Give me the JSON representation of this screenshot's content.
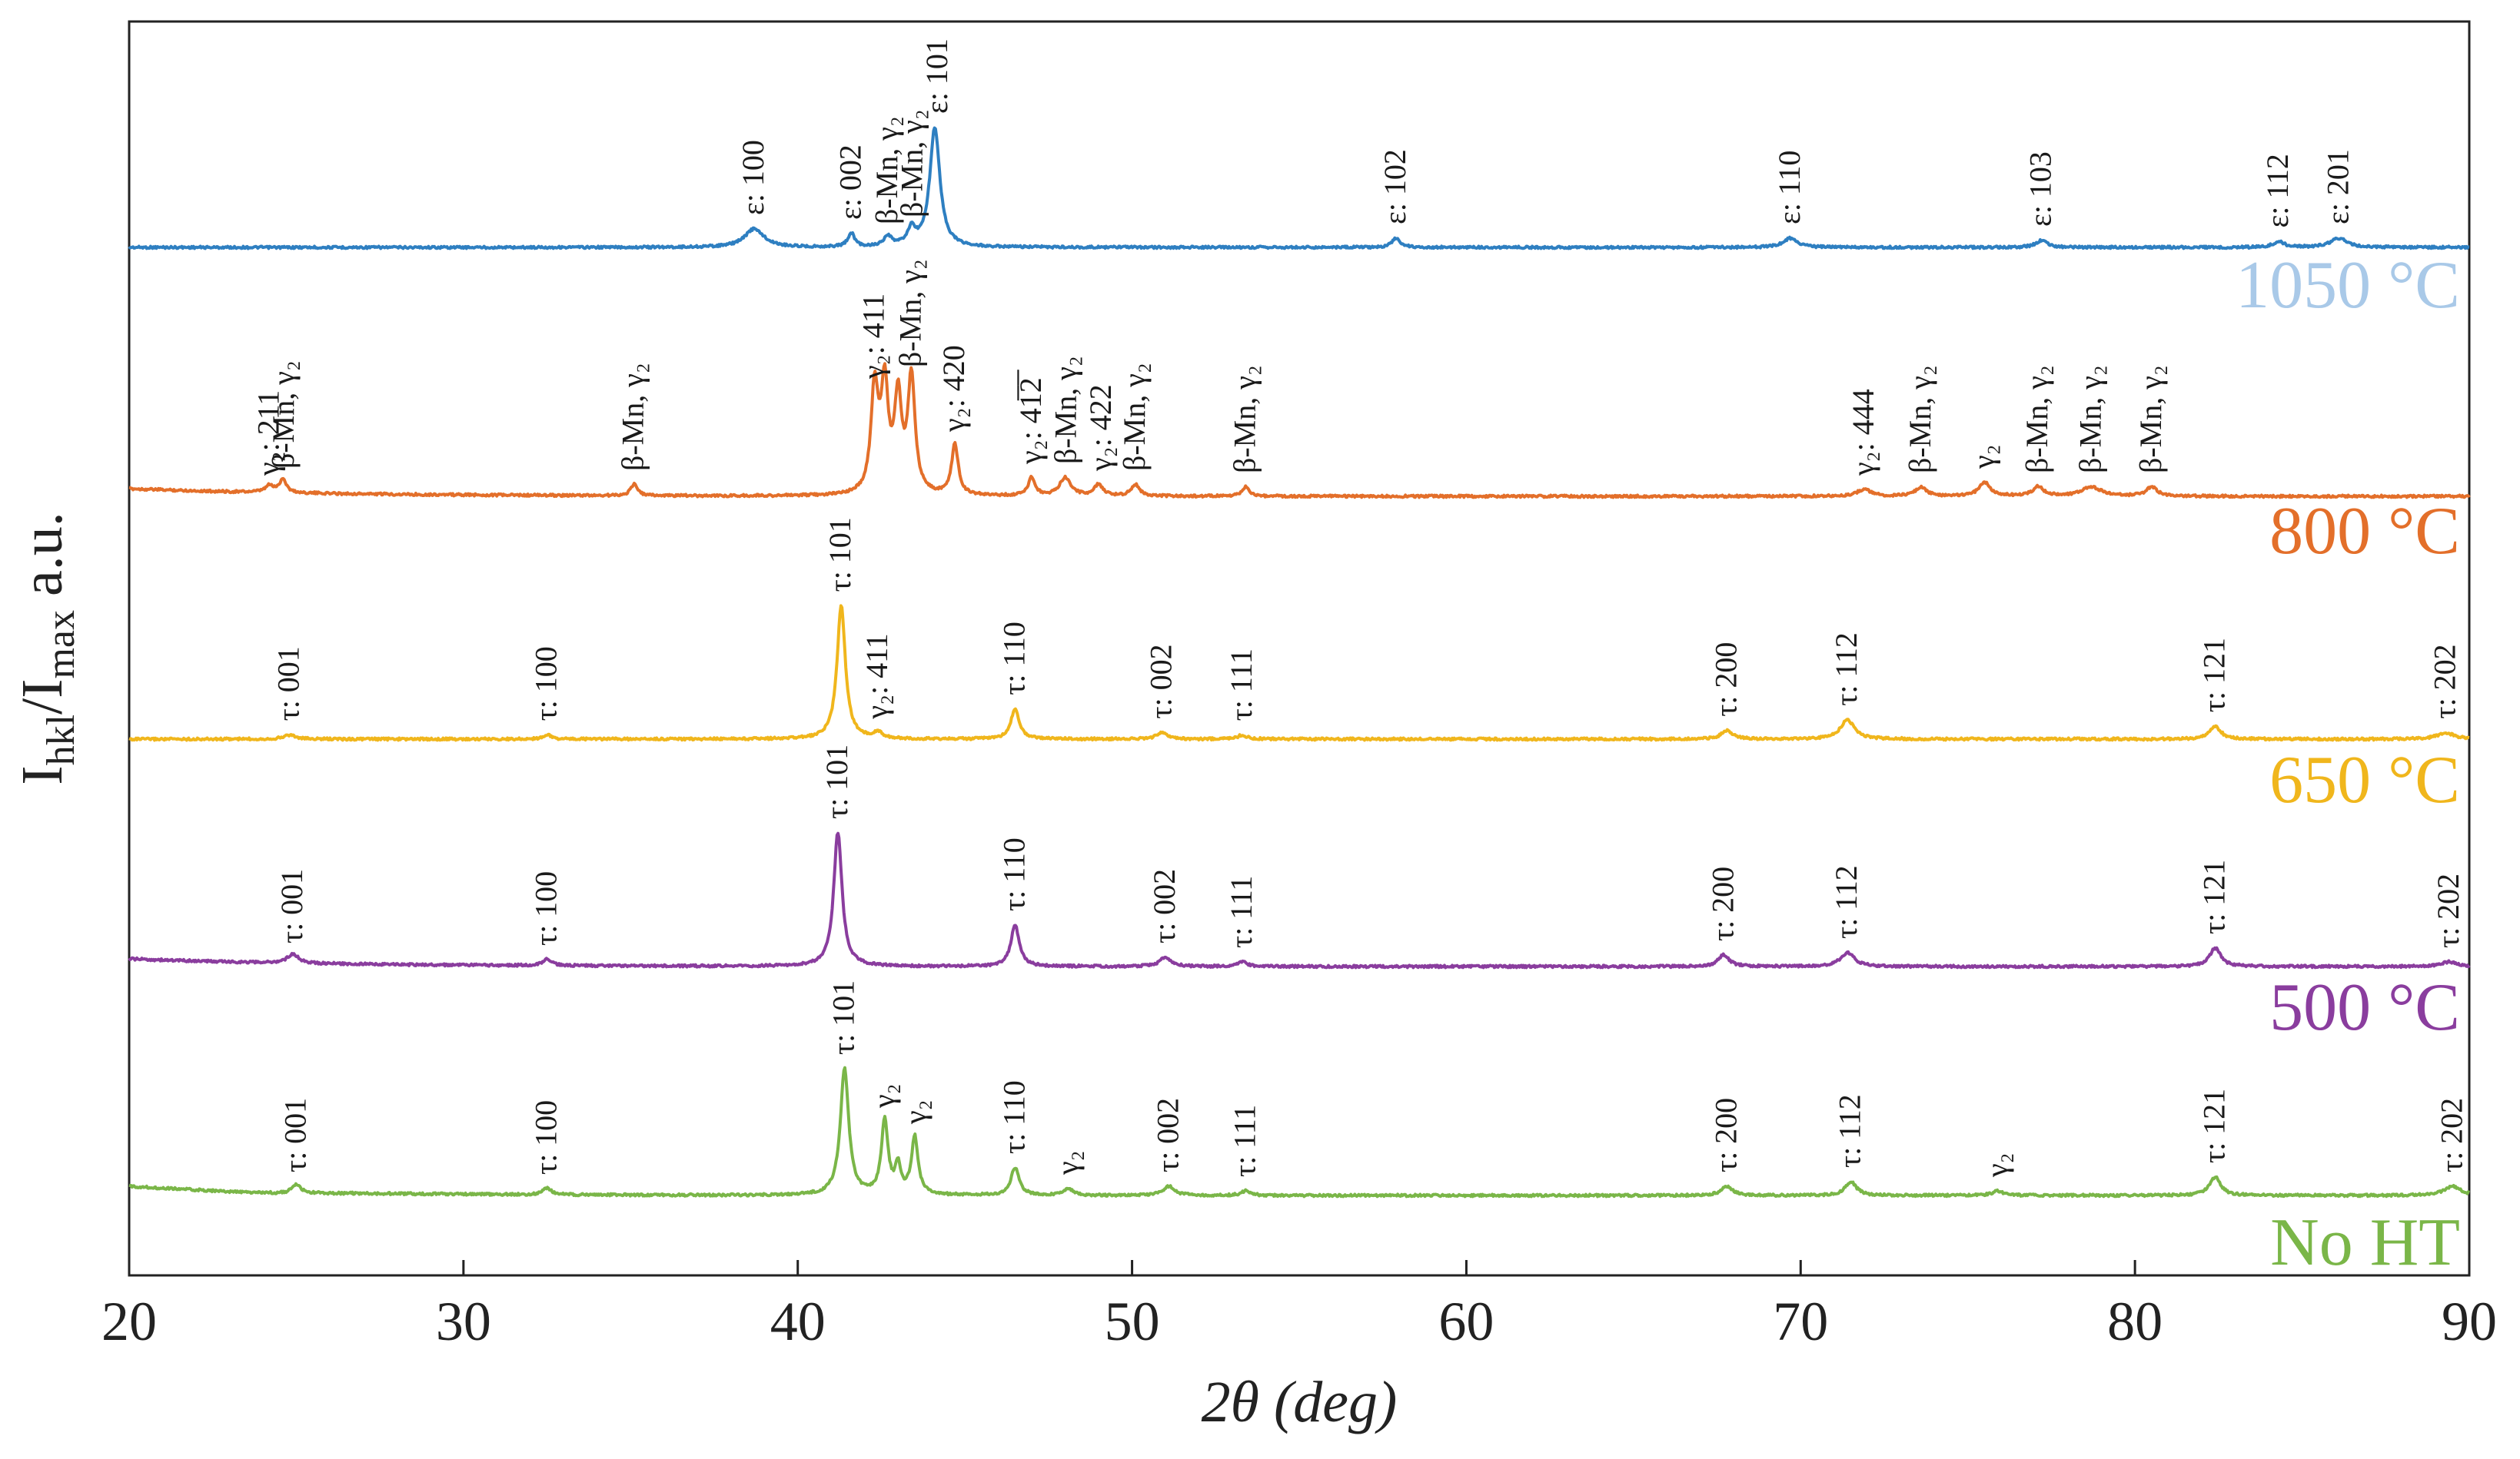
{
  "chart_data": {
    "type": "line",
    "title": "",
    "xlabel": "2θ (deg)",
    "ylabel": "I_hkl/I_max a.u.",
    "ylabel_parts": {
      "main": "I",
      "sub1": "hkl",
      "sep": "/I",
      "sub2": "max",
      "unit": "a.u."
    },
    "xlim": [
      20,
      90
    ],
    "x_ticks": [
      "20",
      "30",
      "40",
      "50",
      "60",
      "70",
      "80",
      "90"
    ],
    "series": [
      {
        "name": "1050 °C",
        "color": "#2e7fc1",
        "label_color": "#a9c9e8",
        "peaks": [
          {
            "x": 38.7,
            "h": 0.08,
            "w": 0.35,
            "label": "ε: 100"
          },
          {
            "x": 41.6,
            "h": 0.06,
            "w": 0.12,
            "label": "ε: 002"
          },
          {
            "x": 42.7,
            "h": 0.04,
            "w": 0.15,
            "label": "β-Mn, γ₂"
          },
          {
            "x": 43.4,
            "h": 0.07,
            "w": 0.15,
            "label": "β-Mn, γ₂"
          },
          {
            "x": 44.1,
            "h": 0.52,
            "w": 0.18,
            "label": "ε: 101"
          },
          {
            "x": 57.9,
            "h": 0.04,
            "w": 0.15,
            "label": "ε: 102"
          },
          {
            "x": 69.7,
            "h": 0.04,
            "w": 0.25,
            "label": "ε: 110"
          },
          {
            "x": 77.2,
            "h": 0.03,
            "w": 0.2,
            "label": "ε: 103"
          },
          {
            "x": 84.3,
            "h": 0.025,
            "w": 0.2,
            "label": "ε: 112"
          },
          {
            "x": 86.1,
            "h": 0.04,
            "w": 0.3,
            "label": "ε: 201"
          }
        ]
      },
      {
        "name": "800 °C",
        "color": "#e36f2a",
        "label_color": "#e36f2a",
        "peaks": [
          {
            "x": 24.2,
            "h": 0.03,
            "w": 0.15,
            "label": "γ₂: 211"
          },
          {
            "x": 24.6,
            "h": 0.06,
            "w": 0.12,
            "label": "β-Mn, γ₂"
          },
          {
            "x": 35.1,
            "h": 0.05,
            "w": 0.12,
            "label": "β-Mn, γ₂"
          },
          {
            "x": 42.3,
            "h": 0.45,
            "w": 0.13,
            "label": "γ₂: 411"
          },
          {
            "x": 42.6,
            "h": 0.45,
            "w": 0.13,
            "label": ""
          },
          {
            "x": 43.0,
            "h": 0.4,
            "w": 0.13,
            "label": ""
          },
          {
            "x": 43.4,
            "h": 0.5,
            "w": 0.13,
            "label": "β-Mn, γ₂"
          },
          {
            "x": 44.7,
            "h": 0.22,
            "w": 0.12,
            "label": "γ₂: 420"
          },
          {
            "x": 47.0,
            "h": 0.08,
            "w": 0.12,
            "label": "γ₂: 41̅2̅"
          },
          {
            "x": 48.0,
            "h": 0.08,
            "w": 0.2,
            "label": "β-Mn, γ₂"
          },
          {
            "x": 49.0,
            "h": 0.05,
            "w": 0.15,
            "label": "γ₂: 422"
          },
          {
            "x": 50.1,
            "h": 0.05,
            "w": 0.15,
            "label": "β-Mn, γ₂"
          },
          {
            "x": 53.4,
            "h": 0.04,
            "w": 0.12,
            "label": "β-Mn, γ₂"
          },
          {
            "x": 71.9,
            "h": 0.03,
            "w": 0.25,
            "label": "γ₂: 444"
          },
          {
            "x": 73.6,
            "h": 0.04,
            "w": 0.2,
            "label": "β-Mn, γ₂"
          },
          {
            "x": 75.5,
            "h": 0.06,
            "w": 0.2,
            "label": "γ₂"
          },
          {
            "x": 77.1,
            "h": 0.04,
            "w": 0.2,
            "label": "β-Mn, γ₂"
          },
          {
            "x": 78.7,
            "h": 0.04,
            "w": 0.35,
            "label": "β-Mn, γ₂"
          },
          {
            "x": 80.5,
            "h": 0.04,
            "w": 0.2,
            "label": "β-Mn, γ₂"
          }
        ]
      },
      {
        "name": "650 °C",
        "color": "#f0b61c",
        "label_color": "#f0b61c",
        "peaks": [
          {
            "x": 24.8,
            "h": 0.02,
            "w": 0.2,
            "label": "τ: 001"
          },
          {
            "x": 32.5,
            "h": 0.02,
            "w": 0.15,
            "label": "τ: 100"
          },
          {
            "x": 41.3,
            "h": 0.62,
            "w": 0.15,
            "label": "τ: 101"
          },
          {
            "x": 42.4,
            "h": 0.03,
            "w": 0.15,
            "label": "γ₂: 411"
          },
          {
            "x": 46.5,
            "h": 0.14,
            "w": 0.15,
            "label": "τ: 110"
          },
          {
            "x": 50.9,
            "h": 0.03,
            "w": 0.2,
            "label": "τ: 002"
          },
          {
            "x": 53.3,
            "h": 0.02,
            "w": 0.15,
            "label": "τ: 111"
          },
          {
            "x": 67.8,
            "h": 0.04,
            "w": 0.2,
            "label": "τ: 200"
          },
          {
            "x": 71.4,
            "h": 0.09,
            "w": 0.25,
            "label": "τ: 112"
          },
          {
            "x": 82.4,
            "h": 0.06,
            "w": 0.2,
            "label": "τ: 121"
          },
          {
            "x": 89.3,
            "h": 0.03,
            "w": 0.3,
            "label": "τ: 202"
          }
        ]
      },
      {
        "name": "500 °C",
        "color": "#8a3d9e",
        "label_color": "#8a3d9e",
        "peaks": [
          {
            "x": 24.9,
            "h": 0.04,
            "w": 0.2,
            "label": "τ: 001"
          },
          {
            "x": 32.5,
            "h": 0.03,
            "w": 0.15,
            "label": "τ: 100"
          },
          {
            "x": 41.2,
            "h": 0.58,
            "w": 0.15,
            "label": "τ: 101"
          },
          {
            "x": 46.5,
            "h": 0.18,
            "w": 0.15,
            "label": "τ: 110"
          },
          {
            "x": 51.0,
            "h": 0.04,
            "w": 0.2,
            "label": "τ: 002"
          },
          {
            "x": 53.3,
            "h": 0.02,
            "w": 0.15,
            "label": "τ: 111"
          },
          {
            "x": 67.7,
            "h": 0.05,
            "w": 0.2,
            "label": "τ: 200"
          },
          {
            "x": 71.4,
            "h": 0.06,
            "w": 0.25,
            "label": "τ: 112"
          },
          {
            "x": 82.4,
            "h": 0.08,
            "w": 0.2,
            "label": "τ: 121"
          },
          {
            "x": 89.4,
            "h": 0.02,
            "w": 0.3,
            "label": "τ: 202"
          }
        ]
      },
      {
        "name": "No HT",
        "color": "#7ab648",
        "label_color": "#7ab648",
        "peaks": [
          {
            "x": 25.0,
            "h": 0.04,
            "w": 0.15,
            "label": "τ: 001"
          },
          {
            "x": 32.5,
            "h": 0.03,
            "w": 0.15,
            "label": "τ: 100"
          },
          {
            "x": 41.4,
            "h": 0.55,
            "w": 0.15,
            "label": "τ: 101"
          },
          {
            "x": 42.6,
            "h": 0.32,
            "w": 0.12,
            "label": "γ₂"
          },
          {
            "x": 43.0,
            "h": 0.12,
            "w": 0.1,
            "label": ""
          },
          {
            "x": 43.5,
            "h": 0.25,
            "w": 0.12,
            "label": "γ₂"
          },
          {
            "x": 46.5,
            "h": 0.12,
            "w": 0.15,
            "label": "τ: 110"
          },
          {
            "x": 48.1,
            "h": 0.03,
            "w": 0.15,
            "label": "γ₂"
          },
          {
            "x": 51.1,
            "h": 0.04,
            "w": 0.2,
            "label": "τ: 002"
          },
          {
            "x": 53.4,
            "h": 0.02,
            "w": 0.15,
            "label": "τ: 111"
          },
          {
            "x": 67.8,
            "h": 0.04,
            "w": 0.2,
            "label": "τ: 200"
          },
          {
            "x": 71.5,
            "h": 0.06,
            "w": 0.2,
            "label": "τ: 112"
          },
          {
            "x": 75.9,
            "h": 0.02,
            "w": 0.2,
            "label": "γ₂"
          },
          {
            "x": 82.4,
            "h": 0.08,
            "w": 0.2,
            "label": "τ: 121"
          },
          {
            "x": 89.5,
            "h": 0.04,
            "w": 0.3,
            "label": "τ: 202"
          }
        ]
      }
    ]
  }
}
